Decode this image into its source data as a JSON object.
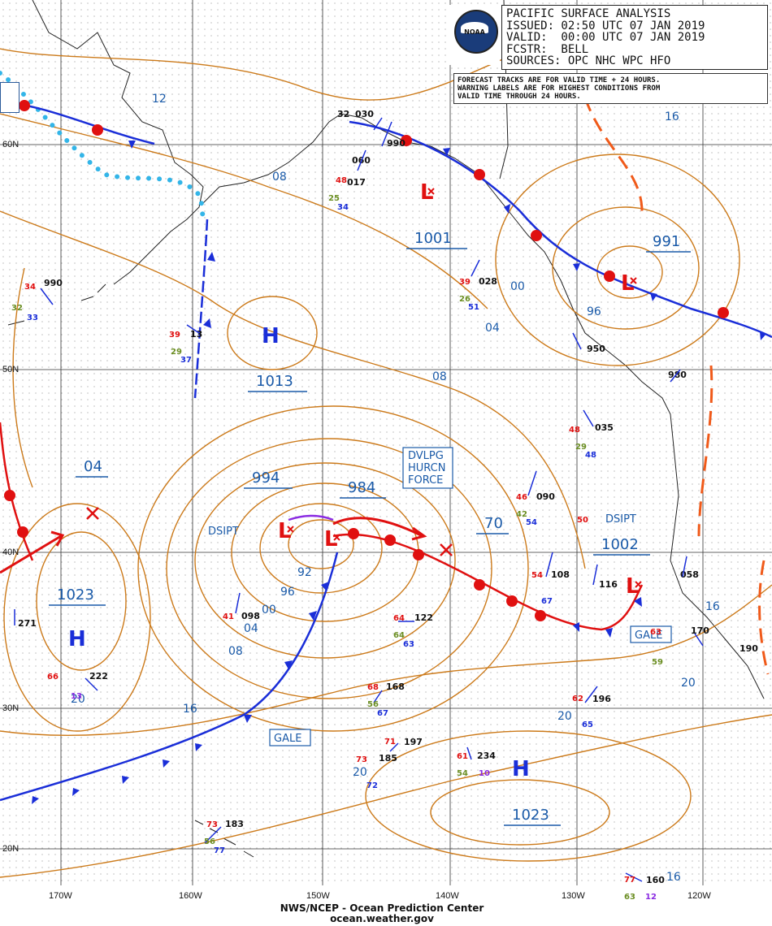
{
  "header": {
    "title": "PACIFIC SURFACE ANALYSIS",
    "issued": "ISSUED: 02:50 UTC 07 JAN 2019",
    "valid": "VALID:  00:00 UTC 07 JAN 2019",
    "forecaster": "FCSTR:  BELL",
    "sources": "SOURCES: OPC NHC WPC HFO"
  },
  "logo_text": "NOAA",
  "note": {
    "line1": "FORECAST TRACKS ARE FOR VALID TIME + 24 HOURS.",
    "line2": "WARNING LABELS ARE FOR HIGHEST CONDITIONS FROM",
    "line3": "VALID TIME THROUGH 24 HOURS."
  },
  "footer": {
    "line1": "NWS/NCEP - Ocean Prediction Center",
    "line2": "ocean.weather.gov"
  },
  "lat_labels": [
    "60N",
    "50N",
    "40N",
    "30N",
    "20N"
  ],
  "lon_labels": [
    "170W",
    "160W",
    "150W",
    "140W",
    "130W",
    "120W"
  ],
  "systems": {
    "highs": [
      "H",
      "H",
      "H"
    ],
    "lows": [
      "L",
      "L",
      "L",
      "L",
      "L"
    ],
    "pressures": [
      "1001",
      "991",
      "1013",
      "994",
      "984",
      "1023",
      "1002",
      "1023",
      "04",
      "70"
    ]
  },
  "isobar_labels": [
    "12",
    "08",
    "00",
    "04",
    "08",
    "96",
    "16",
    "92",
    "96",
    "00",
    "04",
    "08",
    "16",
    "20",
    "20",
    "20",
    "16",
    "16",
    "20"
  ],
  "warnings": {
    "dvlpg": [
      "DVLPG",
      "HURCN",
      "FORCE"
    ],
    "gale1": "GALE",
    "gale2": "GALE",
    "dsipt1": "DSIPT",
    "dsipt2": "DSIPT"
  },
  "obs": [
    "030",
    "990",
    "060",
    "017",
    "028",
    "950",
    "980",
    "035",
    "090",
    "108",
    "116",
    "058",
    "122",
    "098",
    "271",
    "222",
    "168",
    "197",
    "185",
    "234",
    "196",
    "170",
    "190",
    "160",
    "183",
    "13",
    "990",
    "32"
  ],
  "colors": {
    "isobar": "#cc7a1a",
    "text_blue": "#1a5aa8",
    "cold_front": "#1a2ed8",
    "warm_front": "#e01010",
    "ice_edge": "#33b5e8",
    "land": "#222222"
  }
}
